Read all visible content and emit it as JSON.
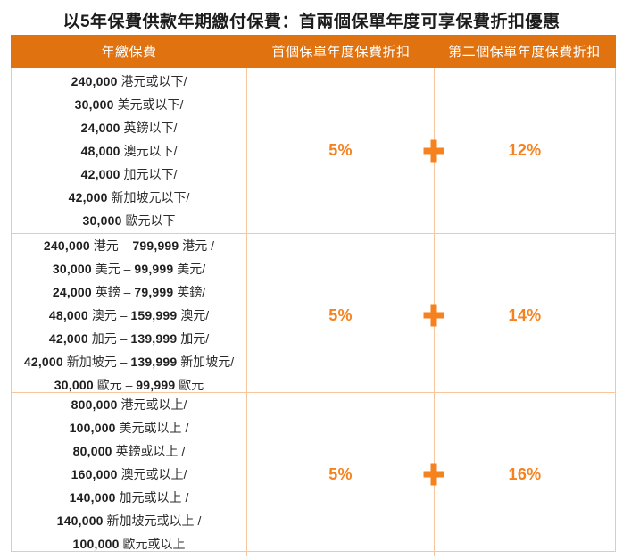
{
  "page": {
    "title": "以5年保費供款年期繳付保費：首兩個保單年度可享保費折扣優惠"
  },
  "table": {
    "columns": [
      "年繳保費",
      "首個保單年度保費折扣",
      "第二個保單年度保費折扣"
    ],
    "rows": [
      {
        "tiers": [
          "240,000 港元或以下/",
          "30,000 美元或以下/",
          "24,000 英鎊以下/",
          "48,000 澳元以下/",
          "42,000 加元以下/",
          "42,000 新加坡元以下/",
          "30,000 歐元以下"
        ],
        "first_year_discount": "5%",
        "second_year_discount": "12%"
      },
      {
        "tiers": [
          "240,000 港元 – 799,999 港元 /",
          "30,000 美元 – 99,999 美元/",
          "24,000 英鎊 – 79,999 英鎊/",
          "48,000 澳元 – 159,999 澳元/",
          "42,000 加元 – 139,999 加元/",
          "42,000 新加坡元 – 139,999 新加坡元/",
          "30,000 歐元 – 99,999 歐元"
        ],
        "first_year_discount": "5%",
        "second_year_discount": "14%"
      },
      {
        "tiers": [
          "800,000 港元或以上/",
          "100,000 美元或以上 /",
          "80,000 英鎊或以上 /",
          "160,000 澳元或以上/",
          "140,000 加元或以上 /",
          "140,000 新加坡元或以上 /",
          "100,000 歐元或以上"
        ],
        "first_year_discount": "5%",
        "second_year_discount": "16%"
      }
    ],
    "plus_symbol": "+"
  },
  "icons": {
    "plus": "+"
  },
  "colors": {
    "header_orange": "#E0720F",
    "accent_orange": "#F5821F",
    "border_peach": "#F8C59C",
    "text_dark": "#1F1F1F"
  }
}
